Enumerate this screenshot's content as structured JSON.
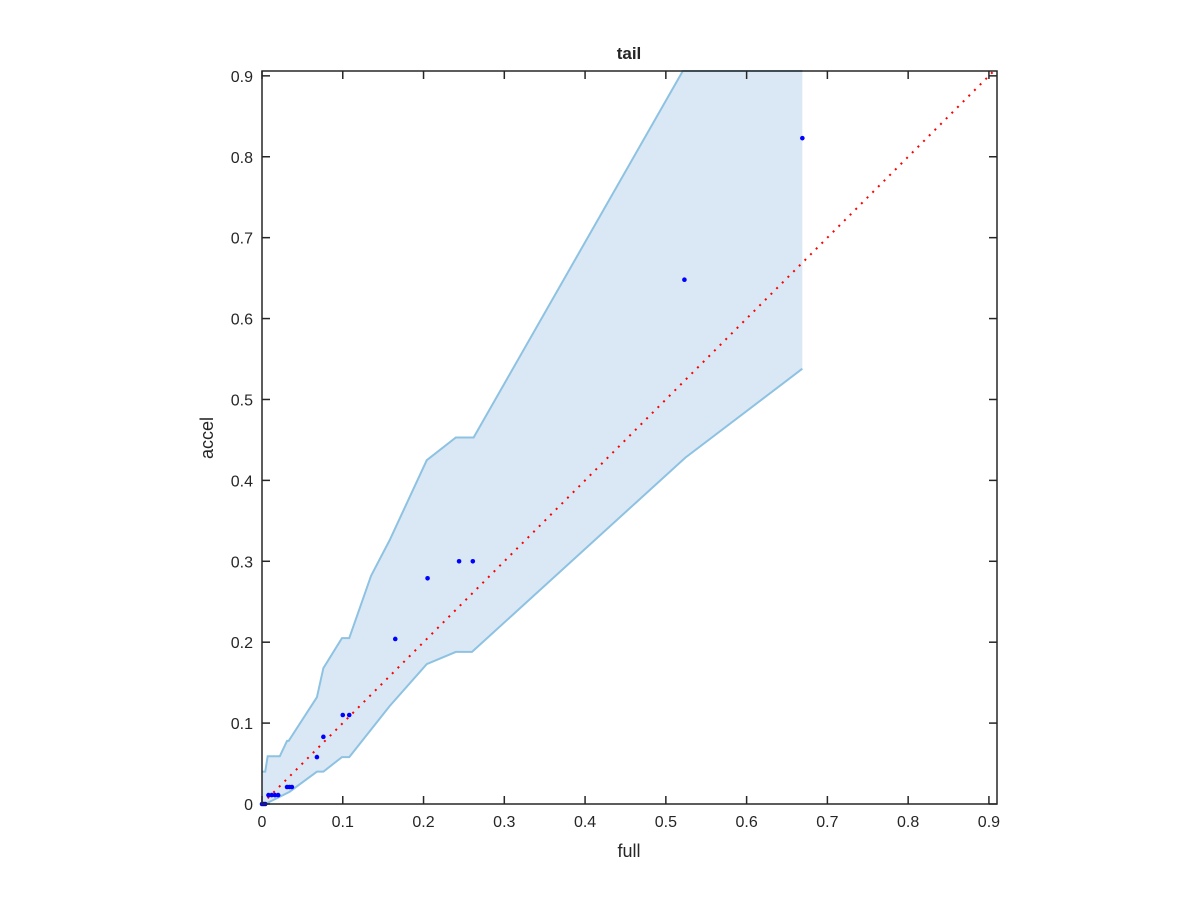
{
  "chart_data": {
    "type": "scatter",
    "title": "tail",
    "xlabel": "full",
    "ylabel": "accel",
    "xlim": [
      0,
      0.91
    ],
    "ylim": [
      0,
      0.906
    ],
    "xticks": [
      0,
      0.1,
      0.2,
      0.3,
      0.4,
      0.5,
      0.6,
      0.7,
      0.8,
      0.9
    ],
    "yticks": [
      0,
      0.1,
      0.2,
      0.3,
      0.4,
      0.5,
      0.6,
      0.7,
      0.8,
      0.9
    ],
    "xtick_labels": [
      "0",
      "0.1",
      "0.2",
      "0.3",
      "0.4",
      "0.5",
      "0.6",
      "0.7",
      "0.8",
      "0.9"
    ],
    "ytick_labels": [
      "0",
      "0.1",
      "0.2",
      "0.3",
      "0.4",
      "0.5",
      "0.6",
      "0.7",
      "0.8",
      "0.9"
    ],
    "grid": false,
    "colors": {
      "band_fill": "#d9e8f4",
      "band_edge": "#8ec2e2",
      "points": "#0000ff",
      "diagonal": "#ff0000",
      "axes": "#262626"
    },
    "band": {
      "upper": [
        [
          0,
          0.04
        ],
        [
          0.004,
          0.04
        ],
        [
          0.007,
          0.059
        ],
        [
          0.022,
          0.059
        ],
        [
          0.031,
          0.078
        ],
        [
          0.033,
          0.078
        ],
        [
          0.068,
          0.132
        ],
        [
          0.076,
          0.168
        ],
        [
          0.099,
          0.205
        ],
        [
          0.108,
          0.205
        ],
        [
          0.135,
          0.282
        ],
        [
          0.158,
          0.326
        ],
        [
          0.204,
          0.425
        ],
        [
          0.24,
          0.453
        ],
        [
          0.262,
          0.453
        ],
        [
          0.521,
          0.906
        ],
        [
          0.669,
          0.906
        ]
      ],
      "lower": [
        [
          0,
          0
        ],
        [
          0.004,
          0
        ],
        [
          0.022,
          0.009
        ],
        [
          0.034,
          0.015
        ],
        [
          0.068,
          0.04
        ],
        [
          0.076,
          0.04
        ],
        [
          0.099,
          0.058
        ],
        [
          0.108,
          0.058
        ],
        [
          0.158,
          0.121
        ],
        [
          0.204,
          0.173
        ],
        [
          0.24,
          0.188
        ],
        [
          0.26,
          0.188
        ],
        [
          0.524,
          0.428
        ],
        [
          0.669,
          0.538
        ]
      ]
    },
    "points": [
      [
        0,
        0
      ],
      [
        0.002,
        0
      ],
      [
        0.004,
        0
      ],
      [
        0.008,
        0.011
      ],
      [
        0.012,
        0.011
      ],
      [
        0.016,
        0.011
      ],
      [
        0.02,
        0.011
      ],
      [
        0.031,
        0.021
      ],
      [
        0.034,
        0.021
      ],
      [
        0.037,
        0.021
      ],
      [
        0.068,
        0.058
      ],
      [
        0.076,
        0.083
      ],
      [
        0.1,
        0.11
      ],
      [
        0.108,
        0.11
      ],
      [
        0.165,
        0.204
      ],
      [
        0.205,
        0.279
      ],
      [
        0.244,
        0.3
      ],
      [
        0.261,
        0.3
      ],
      [
        0.523,
        0.648
      ],
      [
        0.669,
        0.823
      ]
    ],
    "diagonal": [
      [
        0,
        0
      ],
      [
        0.906,
        0.906
      ]
    ]
  }
}
